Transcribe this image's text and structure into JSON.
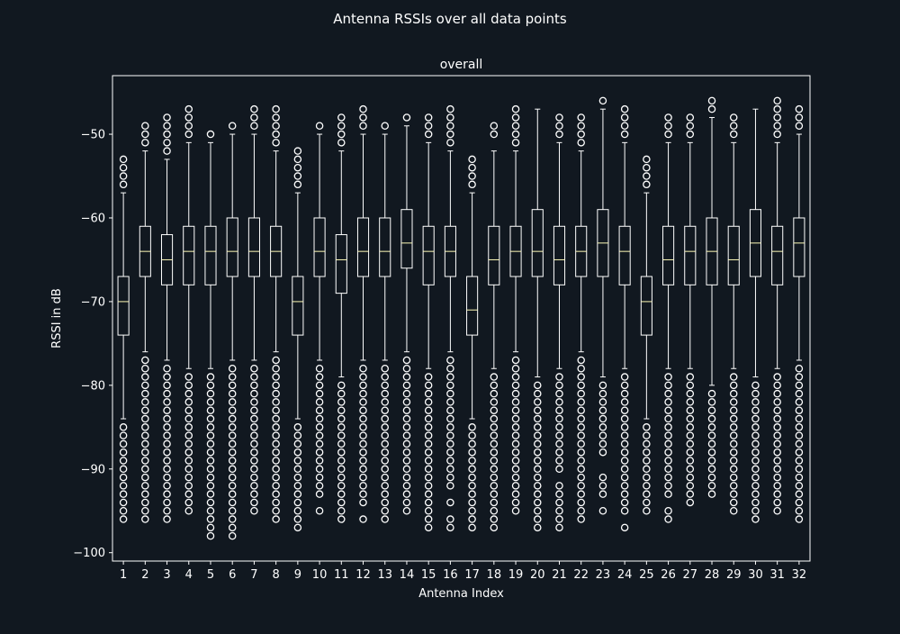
{
  "colors": {
    "background": "#111820",
    "foreground": "#ffffff",
    "median": "#fffbb8"
  },
  "chart_data": {
    "type": "box",
    "suptitle": "Antenna RSSIs over all data points",
    "title": "overall",
    "xlabel": "Antenna Index",
    "ylabel": "RSSI in dB",
    "ylim": [
      -101,
      -43
    ],
    "yticks": [
      -50,
      -60,
      -70,
      -80,
      -90,
      -100
    ],
    "ytick_labels": [
      "−50",
      "−60",
      "−70",
      "−80",
      "−90",
      "−100"
    ],
    "categories": [
      "1",
      "2",
      "3",
      "4",
      "5",
      "6",
      "7",
      "8",
      "9",
      "10",
      "11",
      "12",
      "13",
      "14",
      "15",
      "16",
      "17",
      "18",
      "19",
      "20",
      "21",
      "22",
      "23",
      "24",
      "25",
      "26",
      "27",
      "28",
      "29",
      "30",
      "31",
      "32"
    ],
    "series": [
      {
        "whisker_high": -57,
        "q3": -67,
        "median": -70,
        "q1": -74,
        "whisker_low": -84,
        "outliers_high": [
          -53,
          -54,
          -55,
          -56
        ],
        "outliers_low": [
          -85,
          -86,
          -87,
          -88,
          -89,
          -90,
          -91,
          -92,
          -93,
          -94,
          -95,
          -96
        ]
      },
      {
        "whisker_high": -52,
        "q3": -61,
        "median": -64,
        "q1": -67,
        "whisker_low": -76,
        "outliers_high": [
          -49,
          -50,
          -51
        ],
        "outliers_low": [
          -77,
          -78,
          -79,
          -80,
          -81,
          -82,
          -83,
          -84,
          -85,
          -86,
          -87,
          -88,
          -89,
          -90,
          -91,
          -92,
          -93,
          -94,
          -95,
          -96
        ]
      },
      {
        "whisker_high": -53,
        "q3": -62,
        "median": -65,
        "q1": -68,
        "whisker_low": -77,
        "outliers_high": [
          -48,
          -49,
          -50,
          -51,
          -52
        ],
        "outliers_low": [
          -78,
          -79,
          -80,
          -81,
          -82,
          -83,
          -84,
          -85,
          -86,
          -87,
          -88,
          -89,
          -90,
          -91,
          -92,
          -93,
          -94,
          -95,
          -96
        ]
      },
      {
        "whisker_high": -51,
        "q3": -61,
        "median": -64,
        "q1": -68,
        "whisker_low": -78,
        "outliers_high": [
          -47,
          -48,
          -49,
          -50
        ],
        "outliers_low": [
          -79,
          -80,
          -81,
          -82,
          -83,
          -84,
          -85,
          -86,
          -87,
          -88,
          -89,
          -90,
          -91,
          -92,
          -93,
          -94,
          -95
        ]
      },
      {
        "whisker_high": -51,
        "q3": -61,
        "median": -64,
        "q1": -68,
        "whisker_low": -78,
        "outliers_high": [
          -50
        ],
        "outliers_low": [
          -79,
          -80,
          -81,
          -82,
          -83,
          -84,
          -85,
          -86,
          -87,
          -88,
          -89,
          -90,
          -91,
          -92,
          -93,
          -94,
          -95,
          -96,
          -97,
          -98
        ]
      },
      {
        "whisker_high": -50,
        "q3": -60,
        "median": -64,
        "q1": -67,
        "whisker_low": -77,
        "outliers_high": [
          -49
        ],
        "outliers_low": [
          -78,
          -79,
          -80,
          -81,
          -82,
          -83,
          -84,
          -85,
          -86,
          -87,
          -88,
          -89,
          -90,
          -91,
          -92,
          -93,
          -94,
          -95,
          -96,
          -97,
          -98
        ]
      },
      {
        "whisker_high": -50,
        "q3": -60,
        "median": -64,
        "q1": -67,
        "whisker_low": -77,
        "outliers_high": [
          -47,
          -48,
          -49
        ],
        "outliers_low": [
          -78,
          -79,
          -80,
          -81,
          -82,
          -83,
          -84,
          -85,
          -86,
          -87,
          -88,
          -89,
          -90,
          -91,
          -92,
          -93,
          -94,
          -95
        ]
      },
      {
        "whisker_high": -52,
        "q3": -61,
        "median": -64,
        "q1": -67,
        "whisker_low": -76,
        "outliers_high": [
          -47,
          -48,
          -49,
          -50,
          -51
        ],
        "outliers_low": [
          -77,
          -78,
          -79,
          -80,
          -81,
          -82,
          -83,
          -84,
          -85,
          -86,
          -87,
          -88,
          -89,
          -90,
          -91,
          -92,
          -93,
          -94,
          -95,
          -96
        ]
      },
      {
        "whisker_high": -57,
        "q3": -67,
        "median": -70,
        "q1": -74,
        "whisker_low": -84,
        "outliers_high": [
          -52,
          -53,
          -54,
          -55,
          -56
        ],
        "outliers_low": [
          -85,
          -86,
          -87,
          -88,
          -89,
          -90,
          -91,
          -92,
          -93,
          -94,
          -95,
          -96,
          -97
        ]
      },
      {
        "whisker_high": -50,
        "q3": -60,
        "median": -64,
        "q1": -67,
        "whisker_low": -77,
        "outliers_high": [
          -49
        ],
        "outliers_low": [
          -78,
          -79,
          -80,
          -81,
          -82,
          -83,
          -84,
          -85,
          -86,
          -87,
          -88,
          -89,
          -90,
          -91,
          -92,
          -93,
          -95
        ]
      },
      {
        "whisker_high": -52,
        "q3": -62,
        "median": -65,
        "q1": -69,
        "whisker_low": -79,
        "outliers_high": [
          -48,
          -49,
          -50,
          -51
        ],
        "outliers_low": [
          -80,
          -81,
          -82,
          -83,
          -84,
          -85,
          -86,
          -87,
          -88,
          -89,
          -90,
          -91,
          -92,
          -93,
          -94,
          -95,
          -96
        ]
      },
      {
        "whisker_high": -50,
        "q3": -60,
        "median": -64,
        "q1": -67,
        "whisker_low": -77,
        "outliers_high": [
          -47,
          -48,
          -49
        ],
        "outliers_low": [
          -78,
          -79,
          -80,
          -81,
          -82,
          -83,
          -84,
          -85,
          -86,
          -87,
          -88,
          -89,
          -90,
          -91,
          -92,
          -93,
          -94,
          -96
        ]
      },
      {
        "whisker_high": -50,
        "q3": -60,
        "median": -64,
        "q1": -67,
        "whisker_low": -77,
        "outliers_high": [
          -49
        ],
        "outliers_low": [
          -78,
          -79,
          -80,
          -81,
          -82,
          -83,
          -84,
          -85,
          -86,
          -87,
          -88,
          -89,
          -90,
          -91,
          -92,
          -93,
          -94,
          -95,
          -96
        ]
      },
      {
        "whisker_high": -49,
        "q3": -59,
        "median": -63,
        "q1": -66,
        "whisker_low": -76,
        "outliers_high": [
          -48
        ],
        "outliers_low": [
          -77,
          -78,
          -79,
          -80,
          -81,
          -82,
          -83,
          -84,
          -85,
          -86,
          -87,
          -88,
          -89,
          -90,
          -91,
          -92,
          -93,
          -94,
          -95
        ]
      },
      {
        "whisker_high": -51,
        "q3": -61,
        "median": -64,
        "q1": -68,
        "whisker_low": -78,
        "outliers_high": [
          -48,
          -49,
          -50
        ],
        "outliers_low": [
          -79,
          -80,
          -81,
          -82,
          -83,
          -84,
          -85,
          -86,
          -87,
          -88,
          -89,
          -90,
          -91,
          -92,
          -93,
          -94,
          -95,
          -96,
          -97
        ]
      },
      {
        "whisker_high": -52,
        "q3": -61,
        "median": -64,
        "q1": -67,
        "whisker_low": -76,
        "outliers_high": [
          -47,
          -48,
          -49,
          -50,
          -51
        ],
        "outliers_low": [
          -77,
          -78,
          -79,
          -80,
          -81,
          -82,
          -83,
          -84,
          -85,
          -86,
          -87,
          -88,
          -89,
          -90,
          -91,
          -92,
          -94,
          -96,
          -97
        ]
      },
      {
        "whisker_high": -57,
        "q3": -67,
        "median": -71,
        "q1": -74,
        "whisker_low": -84,
        "outliers_high": [
          -53,
          -54,
          -55,
          -56
        ],
        "outliers_low": [
          -85,
          -86,
          -87,
          -88,
          -89,
          -90,
          -91,
          -92,
          -93,
          -94,
          -95,
          -96,
          -97
        ]
      },
      {
        "whisker_high": -52,
        "q3": -61,
        "median": -65,
        "q1": -68,
        "whisker_low": -78,
        "outliers_high": [
          -49,
          -50
        ],
        "outliers_low": [
          -79,
          -80,
          -81,
          -82,
          -83,
          -84,
          -85,
          -86,
          -87,
          -88,
          -89,
          -90,
          -91,
          -92,
          -93,
          -94,
          -95,
          -96,
          -97
        ]
      },
      {
        "whisker_high": -52,
        "q3": -61,
        "median": -64,
        "q1": -67,
        "whisker_low": -76,
        "outliers_high": [
          -47,
          -48,
          -49,
          -50,
          -51
        ],
        "outliers_low": [
          -77,
          -78,
          -79,
          -80,
          -81,
          -82,
          -83,
          -84,
          -85,
          -86,
          -87,
          -88,
          -89,
          -90,
          -91,
          -92,
          -93,
          -94,
          -95
        ]
      },
      {
        "whisker_high": -47,
        "q3": -59,
        "median": -64,
        "q1": -67,
        "whisker_low": -79,
        "outliers_high": [],
        "outliers_low": [
          -80,
          -81,
          -82,
          -83,
          -84,
          -85,
          -86,
          -87,
          -88,
          -89,
          -90,
          -91,
          -92,
          -93,
          -94,
          -95,
          -96,
          -97
        ]
      },
      {
        "whisker_high": -51,
        "q3": -61,
        "median": -65,
        "q1": -68,
        "whisker_low": -78,
        "outliers_high": [
          -48,
          -49,
          -50
        ],
        "outliers_low": [
          -79,
          -80,
          -81,
          -82,
          -83,
          -84,
          -85,
          -86,
          -87,
          -88,
          -89,
          -90,
          -92,
          -93,
          -94,
          -95,
          -96,
          -97
        ]
      },
      {
        "whisker_high": -52,
        "q3": -61,
        "median": -64,
        "q1": -67,
        "whisker_low": -76,
        "outliers_high": [
          -48,
          -49,
          -50,
          -51
        ],
        "outliers_low": [
          -77,
          -78,
          -79,
          -80,
          -81,
          -82,
          -83,
          -84,
          -85,
          -86,
          -87,
          -88,
          -89,
          -90,
          -91,
          -92,
          -93,
          -94,
          -95,
          -96
        ]
      },
      {
        "whisker_high": -47,
        "q3": -59,
        "median": -63,
        "q1": -67,
        "whisker_low": -79,
        "outliers_high": [
          -46
        ],
        "outliers_low": [
          -80,
          -81,
          -82,
          -83,
          -84,
          -85,
          -86,
          -87,
          -88,
          -91,
          -92,
          -93,
          -95
        ]
      },
      {
        "whisker_high": -51,
        "q3": -61,
        "median": -64,
        "q1": -68,
        "whisker_low": -78,
        "outliers_high": [
          -47,
          -48,
          -49,
          -50
        ],
        "outliers_low": [
          -79,
          -80,
          -81,
          -82,
          -83,
          -84,
          -85,
          -86,
          -87,
          -88,
          -89,
          -90,
          -91,
          -92,
          -93,
          -94,
          -95,
          -97
        ]
      },
      {
        "whisker_high": -57,
        "q3": -67,
        "median": -70,
        "q1": -74,
        "whisker_low": -84,
        "outliers_high": [
          -53,
          -54,
          -55,
          -56
        ],
        "outliers_low": [
          -85,
          -86,
          -87,
          -88,
          -89,
          -90,
          -91,
          -92,
          -93,
          -94,
          -95
        ]
      },
      {
        "whisker_high": -51,
        "q3": -61,
        "median": -65,
        "q1": -68,
        "whisker_low": -78,
        "outliers_high": [
          -48,
          -49,
          -50
        ],
        "outliers_low": [
          -79,
          -80,
          -81,
          -82,
          -83,
          -84,
          -85,
          -86,
          -87,
          -88,
          -89,
          -90,
          -91,
          -92,
          -93,
          -95,
          -96
        ]
      },
      {
        "whisker_high": -51,
        "q3": -61,
        "median": -64,
        "q1": -68,
        "whisker_low": -78,
        "outliers_high": [
          -48,
          -49,
          -50
        ],
        "outliers_low": [
          -79,
          -80,
          -81,
          -82,
          -83,
          -84,
          -85,
          -86,
          -87,
          -88,
          -89,
          -90,
          -91,
          -92,
          -93,
          -94
        ]
      },
      {
        "whisker_high": -48,
        "q3": -60,
        "median": -64,
        "q1": -68,
        "whisker_low": -80,
        "outliers_high": [
          -46,
          -47
        ],
        "outliers_low": [
          -81,
          -82,
          -83,
          -84,
          -85,
          -86,
          -87,
          -88,
          -89,
          -90,
          -91,
          -92,
          -93
        ]
      },
      {
        "whisker_high": -51,
        "q3": -61,
        "median": -65,
        "q1": -68,
        "whisker_low": -78,
        "outliers_high": [
          -48,
          -49,
          -50
        ],
        "outliers_low": [
          -79,
          -80,
          -81,
          -82,
          -83,
          -84,
          -85,
          -86,
          -87,
          -88,
          -89,
          -90,
          -91,
          -92,
          -93,
          -94,
          -95
        ]
      },
      {
        "whisker_high": -47,
        "q3": -59,
        "median": -63,
        "q1": -67,
        "whisker_low": -79,
        "outliers_high": [],
        "outliers_low": [
          -80,
          -81,
          -82,
          -83,
          -84,
          -85,
          -86,
          -87,
          -88,
          -89,
          -90,
          -91,
          -92,
          -93,
          -94,
          -95,
          -96
        ]
      },
      {
        "whisker_high": -51,
        "q3": -61,
        "median": -64,
        "q1": -68,
        "whisker_low": -78,
        "outliers_high": [
          -46,
          -47,
          -48,
          -49,
          -50
        ],
        "outliers_low": [
          -79,
          -80,
          -81,
          -82,
          -83,
          -84,
          -85,
          -86,
          -87,
          -88,
          -89,
          -90,
          -91,
          -92,
          -93,
          -94,
          -95
        ]
      },
      {
        "whisker_high": -50,
        "q3": -60,
        "median": -63,
        "q1": -67,
        "whisker_low": -77,
        "outliers_high": [
          -47,
          -48,
          -49
        ],
        "outliers_low": [
          -78,
          -79,
          -80,
          -81,
          -82,
          -83,
          -84,
          -85,
          -86,
          -87,
          -88,
          -89,
          -90,
          -91,
          -92,
          -93,
          -94,
          -95,
          -96
        ]
      }
    ]
  }
}
